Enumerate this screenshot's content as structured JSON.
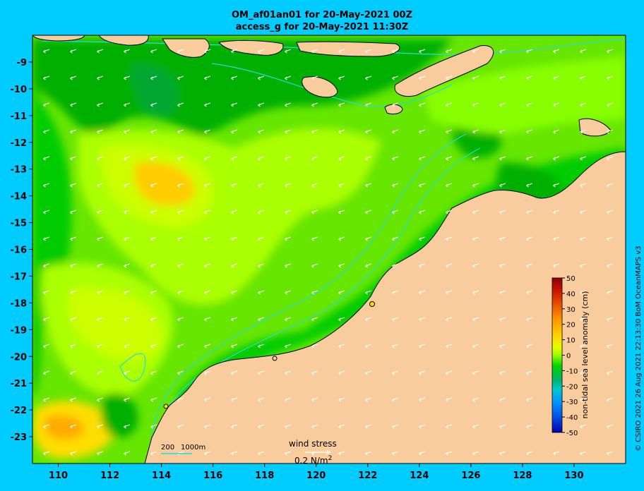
{
  "title_line1": "OM_af01an01 for 20-May-2021 00Z",
  "title_line2": "access_g for 20-May-2021 11:30Z",
  "map": {
    "lon_range": [
      109,
      132
    ],
    "lat_range": [
      -24,
      -8
    ],
    "lon_ticks": [
      "110",
      "112",
      "114",
      "116",
      "118",
      "120",
      "122",
      "124",
      "126",
      "128",
      "130"
    ],
    "lon_tick_values": [
      110,
      112,
      114,
      116,
      118,
      120,
      122,
      124,
      126,
      128,
      130
    ],
    "lat_ticks": [
      "-9",
      "-10",
      "-11",
      "-12",
      "-13",
      "-14",
      "-15",
      "-16",
      "-17",
      "-18",
      "-19",
      "-20",
      "-21",
      "-22",
      "-23"
    ],
    "lat_tick_values": [
      -9,
      -10,
      -11,
      -12,
      -13,
      -14,
      -15,
      -16,
      -17,
      -18,
      -19,
      -20,
      -21,
      -22,
      -23
    ],
    "colors": {
      "land": "#f8cc9c",
      "coast_shelf": "#c8a888",
      "low_anomaly": "#00b400",
      "mid_anomaly": "#00e000",
      "high_anomaly": "#aaff00",
      "peak_anomaly": "#ffd400",
      "isobath": "#22dddd",
      "wind_arrow": "#ffffff"
    }
  },
  "colorbar": {
    "title": "non-tidal sea level anomaly (cm)",
    "ticks": [
      "50",
      "40",
      "30",
      "20",
      "10",
      "0",
      "-10",
      "-20",
      "-30",
      "-40",
      "-50"
    ],
    "colors": [
      "#8b0000",
      "#c81400",
      "#e85000",
      "#ff9600",
      "#ffd200",
      "#e6ff00",
      "#96ff00",
      "#00d200",
      "#00b46e",
      "#00c8c8",
      "#0096ff",
      "#0050e6",
      "#0000b4"
    ]
  },
  "scale_legend": {
    "label_200": "200",
    "label_1000": "1000m"
  },
  "wind_legend": {
    "label": "wind stress",
    "value": "0.2 N/m",
    "exp": "2"
  },
  "credit": "© CSIRO 2021  26 Aug 2021 22:13:30 BoM OceanMAPS v3"
}
